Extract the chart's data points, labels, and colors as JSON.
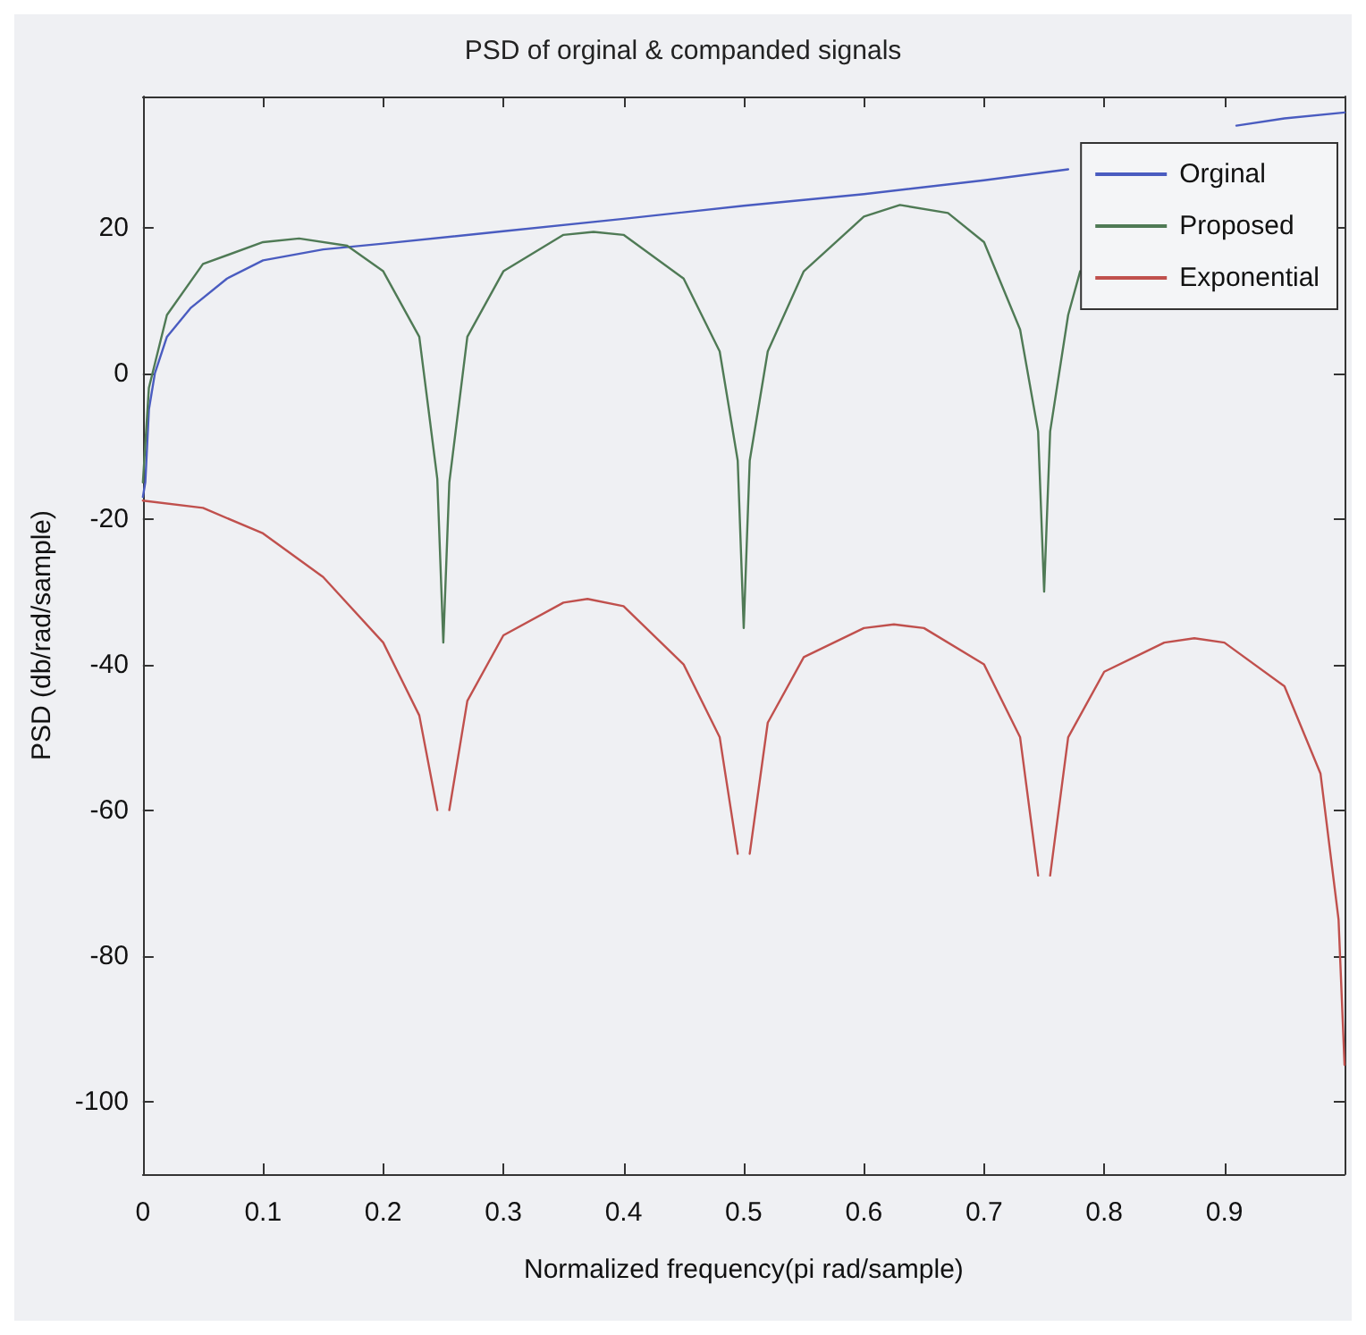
{
  "chart_data": {
    "type": "line",
    "title": "PSD of orginal & companded signals",
    "xlabel": "Normalized frequency(pi rad/sample)",
    "ylabel": "PSD (db/rad/sample)",
    "xlim": [
      0,
      1
    ],
    "xticks": [
      0,
      0.1,
      0.2,
      0.3,
      0.4,
      0.5,
      0.6,
      0.7,
      0.8,
      0.9
    ],
    "ylim": [
      -110,
      38
    ],
    "yticks": [
      -100,
      -80,
      -60,
      -40,
      -20,
      0,
      20
    ],
    "grid": false,
    "legend": "top right",
    "marker": "none",
    "line_style": "solid",
    "series": [
      {
        "name": "Orginal",
        "color": "#4a5cc0",
        "x": [
          0,
          0.002,
          0.005,
          0.01,
          0.02,
          0.04,
          0.07,
          0.1,
          0.15,
          0.2,
          0.3,
          0.4,
          0.5,
          0.6,
          0.7,
          0.77,
          0.85,
          0.91,
          0.95,
          1.0
        ],
        "values": [
          -17,
          -15,
          -5,
          0,
          5,
          9,
          13,
          15.5,
          17,
          17.8,
          19.5,
          21.2,
          23,
          24.6,
          26.5,
          28,
          null,
          34,
          35,
          35.8
        ]
      },
      {
        "name": "Proposed",
        "color": "#4f7a55",
        "x": [
          0,
          0.005,
          0.02,
          0.05,
          0.1,
          0.13,
          0.17,
          0.2,
          0.23,
          0.245,
          0.25,
          0.255,
          0.27,
          0.3,
          0.35,
          0.375,
          0.4,
          0.45,
          0.48,
          0.495,
          0.5,
          0.505,
          0.52,
          0.55,
          0.6,
          0.63,
          0.67,
          0.7,
          0.73,
          0.745,
          0.75,
          0.755,
          0.77,
          0.78
        ],
        "values": [
          -15,
          -2,
          8,
          15,
          18,
          18.5,
          17.5,
          14,
          5,
          -14.5,
          -37,
          -15,
          5,
          14,
          19,
          19.4,
          19,
          13,
          3,
          -12,
          -35,
          -12,
          3,
          14,
          21.5,
          23.1,
          22,
          18,
          6,
          -8,
          -30,
          -8,
          8,
          14
        ]
      },
      {
        "name": "Exponential",
        "color": "#c0504d",
        "x": [
          0,
          0.05,
          0.1,
          0.15,
          0.2,
          0.23,
          0.245,
          0.25,
          0.255,
          0.27,
          0.3,
          0.35,
          0.37,
          0.4,
          0.45,
          0.48,
          0.495,
          0.5,
          0.505,
          0.52,
          0.55,
          0.6,
          0.625,
          0.65,
          0.7,
          0.73,
          0.745,
          0.75,
          0.755,
          0.77,
          0.8,
          0.85,
          0.875,
          0.9,
          0.95,
          0.98,
          0.995,
          1.0
        ],
        "values": [
          -17.5,
          -18.5,
          -22,
          -28,
          -37,
          -47,
          -60,
          null,
          -60,
          -45,
          -36,
          -31.5,
          -31,
          -32,
          -40,
          -50,
          -66,
          null,
          -66,
          -48,
          -39,
          -35,
          -34.5,
          -35,
          -40,
          -50,
          -69,
          null,
          -69,
          -50,
          -41,
          -37,
          -36.4,
          -37,
          -43,
          -55,
          -75,
          -95
        ]
      }
    ]
  }
}
